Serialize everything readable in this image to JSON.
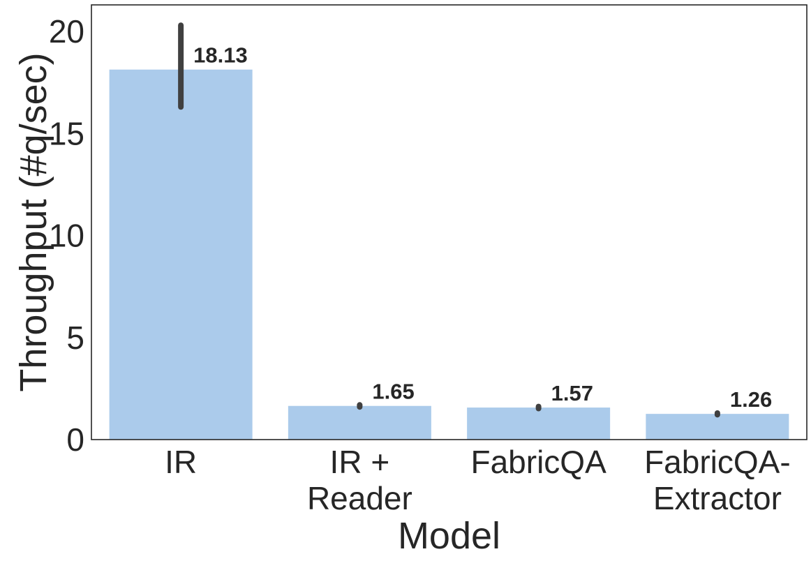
{
  "chart_data": {
    "type": "bar",
    "categories": [
      [
        "IR"
      ],
      [
        "IR +",
        "Reader"
      ],
      [
        "FabricQA"
      ],
      [
        "FabricQA-",
        "Extractor"
      ]
    ],
    "values": [
      18.13,
      1.65,
      1.57,
      1.26
    ],
    "value_labels": [
      "18.13",
      "1.65",
      "1.57",
      "1.26"
    ],
    "error_ranges": [
      [
        16.3,
        20.3
      ],
      [
        1.6,
        1.7
      ],
      [
        1.52,
        1.62
      ],
      [
        1.22,
        1.3
      ]
    ],
    "title": "",
    "xlabel": "Model",
    "ylabel": "Throughput (#q/sec)",
    "ylim": [
      0,
      21.3
    ],
    "yticks": [
      0,
      5,
      10,
      15,
      20
    ],
    "grid": false,
    "colors": {
      "bar": "#abcbeb",
      "error": "#404040",
      "text": "#262626",
      "axis": "#262626"
    }
  }
}
